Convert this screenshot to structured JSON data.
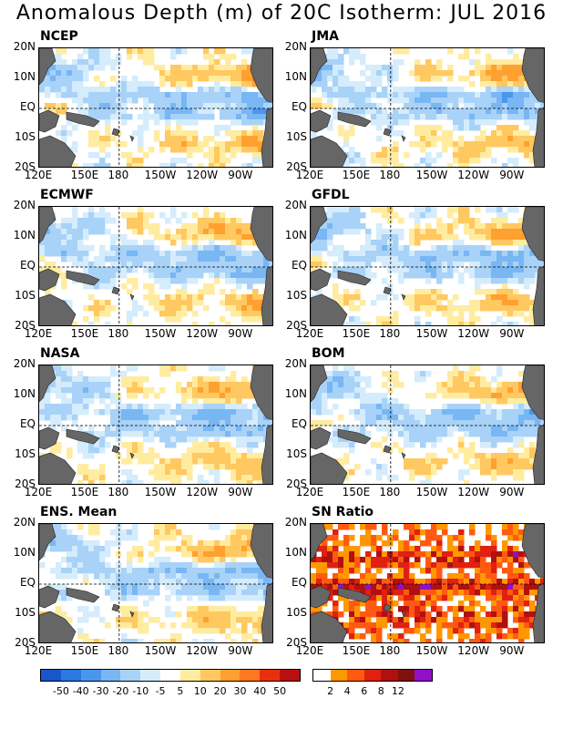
{
  "title": "Anomalous Depth (m) of 20C Isotherm: JUL 2016",
  "axes": {
    "y_ticks": [
      "20N",
      "10N",
      "EQ",
      "10S",
      "20S"
    ],
    "x_ticks": [
      "120E",
      "150E",
      "180",
      "150W",
      "120W",
      "90W"
    ]
  },
  "panels": [
    {
      "label": "NCEP",
      "kind": "anomaly"
    },
    {
      "label": "JMA",
      "kind": "anomaly"
    },
    {
      "label": "ECMWF",
      "kind": "anomaly"
    },
    {
      "label": "GFDL",
      "kind": "anomaly"
    },
    {
      "label": "NASA",
      "kind": "anomaly"
    },
    {
      "label": "BOM",
      "kind": "anomaly"
    },
    {
      "label": "ENS. Mean",
      "kind": "anomaly"
    },
    {
      "label": "SN Ratio",
      "kind": "snr"
    }
  ],
  "colors": {
    "land": "#666666",
    "anomaly_scale": [
      "#1a55cc",
      "#2a78e0",
      "#4a96ee",
      "#78b6f4",
      "#a8d2f8",
      "#d4ecfc",
      "#ffffff",
      "#ffeca0",
      "#ffc860",
      "#ffa030",
      "#ff7820",
      "#e83010",
      "#b81010",
      "#801010",
      "#9010c8"
    ],
    "snr_scale": [
      "#ffffff",
      "#ff9800",
      "#ff5a10",
      "#e02010",
      "#b01010",
      "#801010",
      "#9010c8"
    ]
  },
  "colorbar_anomaly": {
    "labels": [
      "-50",
      "-40",
      "-30",
      "-20",
      "-10",
      "-5",
      "5",
      "10",
      "20",
      "30",
      "40",
      "50"
    ]
  },
  "colorbar_snr": {
    "labels": [
      "2",
      "4",
      "6",
      "8",
      "12"
    ]
  }
}
